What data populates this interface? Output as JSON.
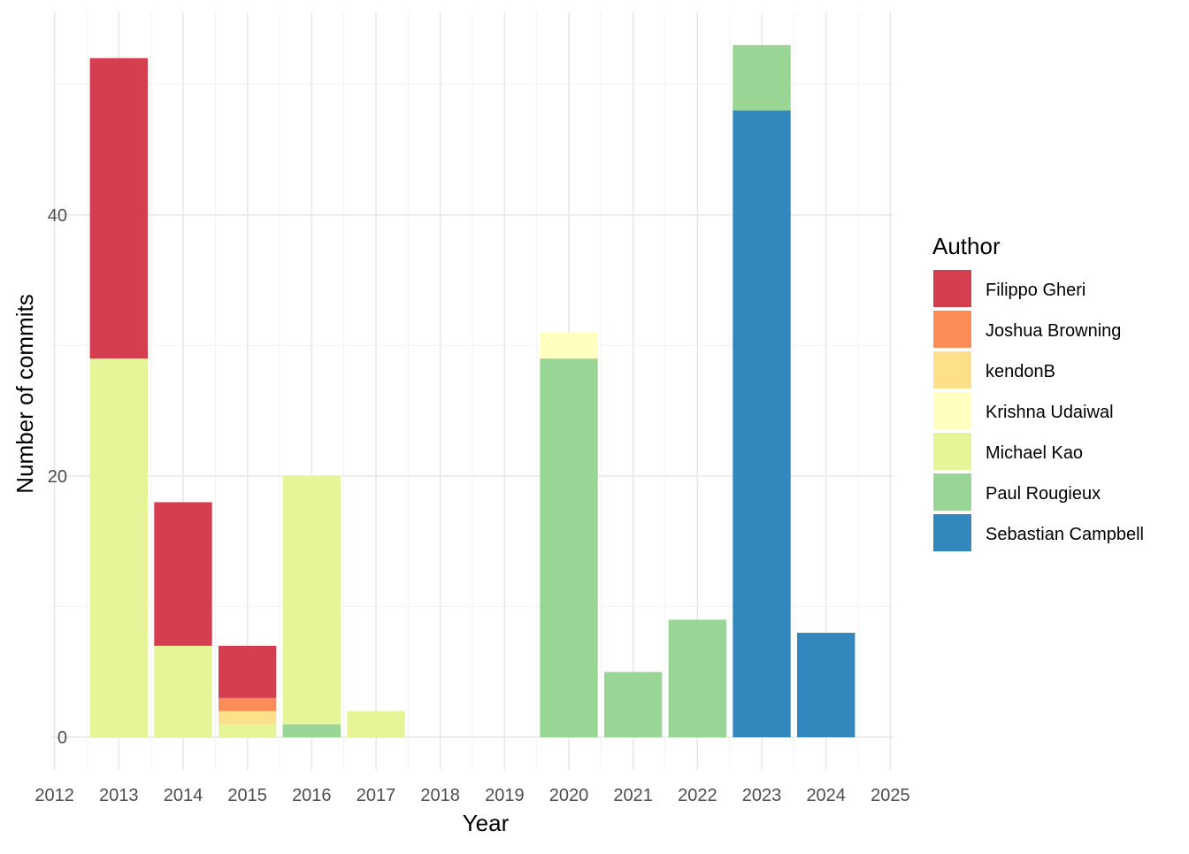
{
  "chart_data": {
    "type": "bar",
    "stacked": true,
    "xlabel": "Year",
    "ylabel": "Number of commits",
    "legend_title": "Author",
    "legend_position": "right",
    "grid": true,
    "x_ticks": [
      2012,
      2013,
      2014,
      2015,
      2016,
      2017,
      2018,
      2019,
      2020,
      2021,
      2022,
      2023,
      2024,
      2025
    ],
    "x_range": [
      2011.95,
      2025.05
    ],
    "y_ticks": [
      0,
      20,
      40
    ],
    "ylim": [
      -2.5,
      55.5
    ],
    "categories": [
      2013,
      2014,
      2015,
      2016,
      2017,
      2020,
      2021,
      2022,
      2023,
      2024
    ],
    "series": [
      {
        "name": "Filippo Gheri",
        "color": "#D53E4F",
        "values": [
          23,
          11,
          4,
          0,
          0,
          0,
          0,
          0,
          0,
          0
        ]
      },
      {
        "name": "Joshua Browning",
        "color": "#FC8D59",
        "values": [
          0,
          0,
          1,
          0,
          0,
          0,
          0,
          0,
          0,
          0
        ]
      },
      {
        "name": "kendonB",
        "color": "#FEE08B",
        "values": [
          0,
          0,
          1,
          0,
          0,
          0,
          0,
          0,
          0,
          0
        ]
      },
      {
        "name": "Krishna Udaiwal",
        "color": "#FFFFBF",
        "values": [
          0,
          0,
          0,
          0,
          0,
          2,
          0,
          0,
          0,
          0
        ]
      },
      {
        "name": "Michael Kao",
        "color": "#E6F598",
        "values": [
          29,
          7,
          1,
          19,
          2,
          0,
          0,
          0,
          0,
          0
        ]
      },
      {
        "name": "Paul Rougieux",
        "color": "#99D594",
        "values": [
          0,
          0,
          0,
          1,
          0,
          29,
          5,
          9,
          5,
          0
        ]
      },
      {
        "name": "Sebastian Campbell",
        "color": "#3288BD",
        "values": [
          0,
          0,
          0,
          0,
          0,
          0,
          0,
          0,
          48,
          8
        ]
      }
    ]
  }
}
